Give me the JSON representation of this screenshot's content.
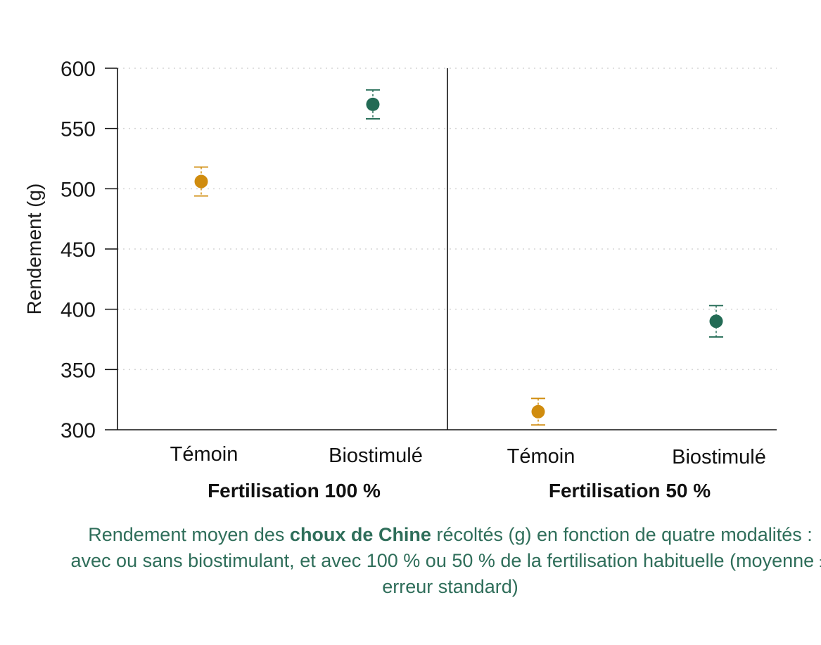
{
  "chart_data": {
    "type": "scatter",
    "ylabel": "Rendement (g)",
    "ylim": [
      300,
      600
    ],
    "yticks": [
      "300",
      "350",
      "400",
      "450",
      "500",
      "550",
      "600"
    ],
    "grid": "horizontal dotted",
    "groups": [
      {
        "label": "Fertilisation 100 %",
        "points": [
          {
            "category": "Témoin",
            "mean": 506,
            "err_low": 494,
            "err_high": 518,
            "color": "#d08c0e"
          },
          {
            "category": "Biostimulé",
            "mean": 570,
            "err_low": 558,
            "err_high": 582,
            "color": "#236b55"
          }
        ]
      },
      {
        "label": "Fertilisation 50 %",
        "points": [
          {
            "category": "Témoin",
            "mean": 315,
            "err_low": 304,
            "err_high": 326,
            "color": "#d08c0e"
          },
          {
            "category": "Biostimulé",
            "mean": 390,
            "err_low": 377,
            "err_high": 403,
            "color": "#236b55"
          }
        ]
      }
    ]
  },
  "caption": {
    "part1": "Rendement moyen des ",
    "bold": "choux de Chine",
    "part2": " récoltés (g) en fonction de quatre modalités : avec ou sans biostimulant, et avec 100 % ou 50 % de la fertilisation habituelle (moyenne ± erreur standard)"
  }
}
